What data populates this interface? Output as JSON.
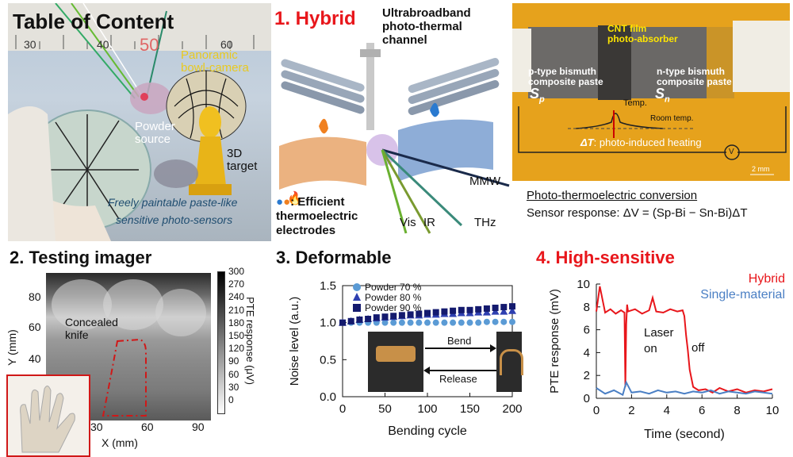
{
  "toc": {
    "title": "Table of Content",
    "ruler_50": "50",
    "ruler_30": "30",
    "ruler_40": "40",
    "ruler_60": "60",
    "panoramic_line1": "Panoramic",
    "panoramic_line2": "bowl-camera",
    "powder_line1": "Powder",
    "powder_line2": "source",
    "target_line1": "3D",
    "target_line2": "target",
    "paintable_line1": "Freely paintable paste-like",
    "paintable_line2": "sensitive photo-sensors"
  },
  "hybrid": {
    "heading": "1. Hybrid",
    "channel_line1": "Ultrabroadband",
    "channel_line2": "photo-thermal",
    "channel_line3": "channel",
    "electrode_line1": ": Efficient",
    "electrode_line2": "thermoelectric",
    "electrode_line3": "electrodes",
    "wave_vis": "Vis",
    "wave_ir": "IR",
    "wave_thz": "THz",
    "wave_mmw": "MMW"
  },
  "photo": {
    "cnt_line1": "CNT film",
    "cnt_line2": "photo-absorber",
    "p_line1": "p-type bismuth",
    "p_line2": "composite paste",
    "p_symbol": "S",
    "p_sub": "p",
    "n_line1": "n-type bismuth",
    "n_line2": "composite paste",
    "n_symbol": "S",
    "n_sub": "n",
    "temp": "Temp.",
    "room_temp": "Room temp.",
    "delta_t": "ΔT",
    "delta_t_desc": ": photo-induced heating",
    "voltmeter": "V",
    "scale": "2 mm",
    "conversion_title": "Photo-thermoelectric conversion",
    "formula": "Sensor response: ΔV = (Sp-Bi − Sn-Bi)ΔT"
  },
  "imager": {
    "heading": "2. Testing imager",
    "ylabel": "Y (mm)",
    "xlabel": "X (mm)",
    "y_ticks": [
      "80",
      "60",
      "40"
    ],
    "x_ticks": [
      "30",
      "60",
      "90"
    ],
    "annotation_line1": "Concealed",
    "annotation_line2": "knife",
    "colorbar_ticks": [
      "300",
      "270",
      "240",
      "210",
      "180",
      "150",
      "120",
      "90",
      "60",
      "30",
      "0"
    ],
    "colorbar_label": "PTE response (μV)"
  },
  "deformable": {
    "heading": "3. Deformable",
    "bend_label": "Bend",
    "release_label": "Release"
  },
  "sensitive": {
    "heading": "4. High-sensitive",
    "laser_line1": "Laser",
    "laser_line2": "on",
    "off_label": "off"
  },
  "colors": {
    "heading_red": "#d01818",
    "hybrid_red": "#e8161b",
    "single_blue": "#4a7fc4",
    "powder70": "#5b9bd5",
    "powder80": "#2e3fb0",
    "powder90": "#141a6e"
  },
  "chart_data": [
    {
      "type": "scatter",
      "title": "",
      "xlabel": "Bending cycle",
      "ylabel": "Noise level (a.u.)",
      "xlim": [
        0,
        200
      ],
      "ylim": [
        0.0,
        1.5
      ],
      "x_ticks": [
        0,
        50,
        100,
        150,
        200
      ],
      "y_ticks": [
        0.0,
        0.5,
        1.0,
        1.5
      ],
      "legend": "top-left",
      "series": [
        {
          "name": "Powder 70 %",
          "marker": "circle",
          "x": [
            0,
            10,
            20,
            30,
            40,
            50,
            60,
            70,
            80,
            90,
            100,
            110,
            120,
            130,
            140,
            150,
            160,
            170,
            180,
            190,
            200
          ],
          "values": [
            1.0,
            1.0,
            1.0,
            1.0,
            1.0,
            1.0,
            1.0,
            1.0,
            1.0,
            1.0,
            1.0,
            1.0,
            1.0,
            1.0,
            1.0,
            1.0,
            1.0,
            1.01,
            1.01,
            1.01,
            1.01
          ]
        },
        {
          "name": "Powder 80 %",
          "marker": "triangle",
          "x": [
            0,
            10,
            20,
            30,
            40,
            50,
            60,
            70,
            80,
            90,
            100,
            110,
            120,
            130,
            140,
            150,
            160,
            170,
            180,
            190,
            200
          ],
          "values": [
            1.0,
            1.02,
            1.04,
            1.05,
            1.06,
            1.07,
            1.08,
            1.09,
            1.1,
            1.1,
            1.11,
            1.11,
            1.12,
            1.12,
            1.13,
            1.13,
            1.14,
            1.14,
            1.15,
            1.15,
            1.16
          ]
        },
        {
          "name": "Powder 90 %",
          "marker": "square",
          "x": [
            0,
            10,
            20,
            30,
            40,
            50,
            60,
            70,
            80,
            90,
            100,
            110,
            120,
            130,
            140,
            150,
            160,
            170,
            180,
            190,
            200
          ],
          "values": [
            1.0,
            1.02,
            1.04,
            1.05,
            1.07,
            1.08,
            1.09,
            1.1,
            1.11,
            1.12,
            1.13,
            1.14,
            1.15,
            1.16,
            1.17,
            1.17,
            1.18,
            1.19,
            1.2,
            1.21,
            1.22
          ]
        }
      ]
    },
    {
      "type": "line",
      "title": "",
      "xlabel": "Time (second)",
      "ylabel": "PTE response (mV)",
      "xlim": [
        0,
        10
      ],
      "ylim": [
        0,
        10
      ],
      "x_ticks": [
        0,
        2,
        4,
        6,
        8,
        10
      ],
      "y_ticks": [
        0,
        2,
        4,
        6,
        8,
        10
      ],
      "legend": "top-right",
      "series": [
        {
          "name": "Hybrid",
          "x": [
            0,
            0.2,
            0.5,
            0.8,
            1.1,
            1.4,
            1.6,
            1.65,
            1.7,
            1.75,
            1.8,
            2.2,
            2.6,
            3.0,
            3.2,
            3.4,
            3.8,
            4.2,
            4.6,
            4.9,
            5.0,
            5.1,
            5.2,
            5.3,
            5.5,
            5.8,
            6.2,
            6.6,
            7.0,
            7.5,
            8.0,
            8.5,
            9.0,
            9.5,
            10.0
          ],
          "values": [
            7.6,
            9.8,
            7.5,
            7.8,
            7.4,
            7.7,
            7.5,
            1.0,
            6.5,
            8.2,
            7.6,
            7.8,
            7.4,
            7.7,
            8.8,
            7.6,
            7.5,
            7.8,
            7.6,
            7.7,
            7.2,
            5.5,
            4.2,
            2.5,
            1.0,
            0.7,
            0.8,
            0.5,
            0.9,
            0.6,
            0.8,
            0.5,
            0.7,
            0.6,
            0.8
          ]
        },
        {
          "name": "Single-material",
          "x": [
            0,
            0.5,
            1.0,
            1.5,
            1.7,
            2.0,
            2.5,
            3.0,
            3.5,
            4.0,
            4.5,
            5.0,
            5.5,
            6.0,
            6.5,
            7.0,
            7.5,
            8.0,
            8.5,
            9.0,
            9.5,
            10.0
          ],
          "values": [
            0.9,
            0.4,
            0.7,
            0.3,
            1.4,
            0.5,
            0.6,
            0.4,
            0.7,
            0.5,
            0.6,
            0.4,
            0.6,
            0.5,
            0.7,
            0.4,
            0.6,
            0.5,
            0.4,
            0.6,
            0.5,
            0.4
          ]
        }
      ]
    }
  ]
}
